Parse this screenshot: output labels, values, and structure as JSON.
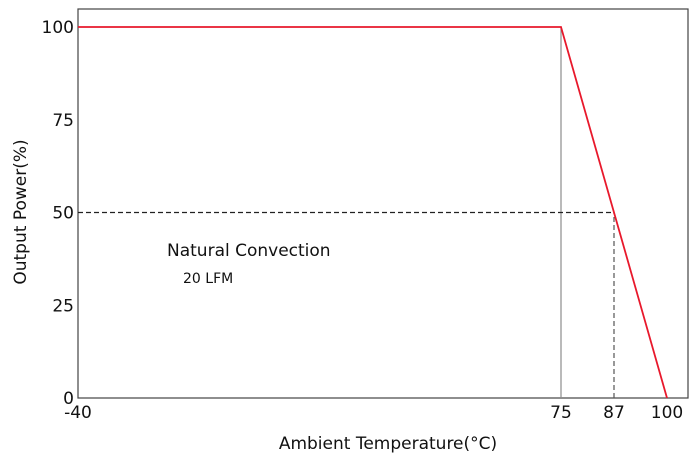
{
  "chart_data": {
    "type": "line",
    "title": "",
    "xlabel": "Ambient Temperature(°C)",
    "ylabel": "Output Power(%)",
    "x_ticks": [
      "-40",
      "75",
      "87",
      "100"
    ],
    "y_ticks": [
      "0",
      "25",
      "50",
      "75",
      "100"
    ],
    "xlim": [
      -40,
      100
    ],
    "ylim": [
      0,
      100
    ],
    "grid": false,
    "series": [
      {
        "x": [
          -40,
          75,
          100
        ],
        "y": [
          100,
          100,
          0
        ],
        "color": "#e8192c"
      }
    ],
    "reference_lines": [
      {
        "style": "solid",
        "color": "#8c8c8c",
        "points": [
          [
            75,
            0
          ],
          [
            75,
            100
          ]
        ]
      },
      {
        "style": "dashed",
        "color": "#222222",
        "points": [
          [
            -40,
            50
          ],
          [
            87,
            50
          ]
        ]
      },
      {
        "style": "dashed",
        "color": "#555555",
        "points": [
          [
            87,
            0
          ],
          [
            87,
            50
          ]
        ]
      }
    ],
    "annotations": {
      "main": "Natural Convection",
      "sub": "20 LFM"
    },
    "frame_color": "#444444"
  }
}
